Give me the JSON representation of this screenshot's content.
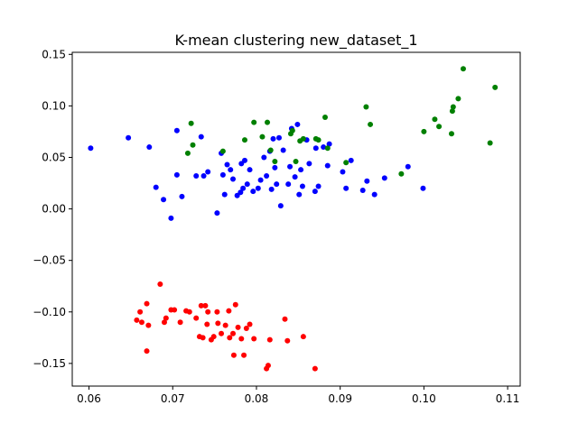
{
  "chart_data": {
    "type": "scatter",
    "title": "K-mean clustering new_dataset_1",
    "xlabel": "",
    "ylabel": "",
    "xlim": [
      0.058,
      0.1115
    ],
    "ylim": [
      -0.172,
      0.152
    ],
    "grid": false,
    "x_ticks": [
      0.06,
      0.07,
      0.08,
      0.09,
      0.1,
      0.11
    ],
    "x_tick_labels": [
      "0.06",
      "0.07",
      "0.08",
      "0.09",
      "0.10",
      "0.11"
    ],
    "y_ticks": [
      0.15,
      0.1,
      0.05,
      0.0,
      -0.05,
      -0.1,
      -0.15
    ],
    "y_tick_labels": [
      "0.15",
      "0.10",
      "0.05",
      "0.00",
      "−0.05",
      "−0.10",
      "−0.15"
    ],
    "series": [
      {
        "color": "#0000ff",
        "points": [
          [
            0.0602,
            0.059
          ],
          [
            0.0647,
            0.069
          ],
          [
            0.0672,
            0.06
          ],
          [
            0.068,
            0.021
          ],
          [
            0.0689,
            0.009
          ],
          [
            0.0698,
            -0.009
          ],
          [
            0.0705,
            0.033
          ],
          [
            0.0705,
            0.076
          ],
          [
            0.0711,
            0.012
          ],
          [
            0.0728,
            0.032
          ],
          [
            0.0734,
            0.07
          ],
          [
            0.0737,
            0.032
          ],
          [
            0.0742,
            0.036
          ],
          [
            0.0753,
            -0.004
          ],
          [
            0.0758,
            0.054
          ],
          [
            0.076,
            0.033
          ],
          [
            0.0762,
            0.014
          ],
          [
            0.0765,
            0.043
          ],
          [
            0.0769,
            0.038
          ],
          [
            0.0772,
            0.029
          ],
          [
            0.0777,
            0.013
          ],
          [
            0.0781,
            0.016
          ],
          [
            0.0782,
            0.044
          ],
          [
            0.0784,
            0.02
          ],
          [
            0.0786,
            0.047
          ],
          [
            0.0789,
            0.024
          ],
          [
            0.0792,
            0.038
          ],
          [
            0.0796,
            0.017
          ],
          [
            0.0802,
            0.02
          ],
          [
            0.0805,
            0.028
          ],
          [
            0.0809,
            0.05
          ],
          [
            0.0812,
            0.032
          ],
          [
            0.0816,
            0.056
          ],
          [
            0.0818,
            0.019
          ],
          [
            0.082,
            0.068
          ],
          [
            0.0822,
            0.04
          ],
          [
            0.0824,
            0.024
          ],
          [
            0.0827,
            0.069
          ],
          [
            0.0829,
            0.003
          ],
          [
            0.0832,
            0.057
          ],
          [
            0.0838,
            0.024
          ],
          [
            0.084,
            0.041
          ],
          [
            0.0842,
            0.078
          ],
          [
            0.0846,
            0.031
          ],
          [
            0.0849,
            0.082
          ],
          [
            0.0851,
            0.014
          ],
          [
            0.0853,
            0.038
          ],
          [
            0.0855,
            0.022
          ],
          [
            0.086,
            0.067
          ],
          [
            0.0863,
            0.044
          ],
          [
            0.087,
            0.017
          ],
          [
            0.0871,
            0.059
          ],
          [
            0.0874,
            0.022
          ],
          [
            0.088,
            0.06
          ],
          [
            0.0885,
            0.042
          ],
          [
            0.0887,
            0.063
          ],
          [
            0.0903,
            0.036
          ],
          [
            0.0907,
            0.02
          ],
          [
            0.0913,
            0.047
          ],
          [
            0.0927,
            0.018
          ],
          [
            0.0932,
            0.027
          ],
          [
            0.0941,
            0.014
          ],
          [
            0.0953,
            0.03
          ],
          [
            0.0981,
            0.041
          ],
          [
            0.0999,
            0.02
          ]
        ]
      },
      {
        "color": "#008000",
        "points": [
          [
            0.0718,
            0.054
          ],
          [
            0.0722,
            0.083
          ],
          [
            0.0724,
            0.062
          ],
          [
            0.076,
            0.056
          ],
          [
            0.0786,
            0.067
          ],
          [
            0.0797,
            0.084
          ],
          [
            0.0807,
            0.07
          ],
          [
            0.0813,
            0.084
          ],
          [
            0.0817,
            0.057
          ],
          [
            0.0822,
            0.046
          ],
          [
            0.0841,
            0.073
          ],
          [
            0.0843,
            0.076
          ],
          [
            0.0847,
            0.046
          ],
          [
            0.0852,
            0.066
          ],
          [
            0.0856,
            0.068
          ],
          [
            0.0871,
            0.068
          ],
          [
            0.0874,
            0.067
          ],
          [
            0.0882,
            0.089
          ],
          [
            0.0885,
            0.059
          ],
          [
            0.0907,
            0.045
          ],
          [
            0.0931,
            0.099
          ],
          [
            0.0936,
            0.082
          ],
          [
            0.0973,
            0.034
          ],
          [
            0.1,
            0.075
          ],
          [
            0.1013,
            0.087
          ],
          [
            0.1018,
            0.08
          ],
          [
            0.1033,
            0.073
          ],
          [
            0.1034,
            0.095
          ],
          [
            0.1035,
            0.099
          ],
          [
            0.1041,
            0.107
          ],
          [
            0.1047,
            0.136
          ],
          [
            0.1079,
            0.064
          ],
          [
            0.1085,
            0.118
          ]
        ]
      },
      {
        "color": "#ff0000",
        "points": [
          [
            0.0657,
            -0.108
          ],
          [
            0.0661,
            -0.1
          ],
          [
            0.0663,
            -0.11
          ],
          [
            0.0669,
            -0.092
          ],
          [
            0.0669,
            -0.138
          ],
          [
            0.0671,
            -0.113
          ],
          [
            0.0685,
            -0.073
          ],
          [
            0.069,
            -0.11
          ],
          [
            0.0692,
            -0.106
          ],
          [
            0.0698,
            -0.098
          ],
          [
            0.0702,
            -0.098
          ],
          [
            0.0709,
            -0.11
          ],
          [
            0.0716,
            -0.099
          ],
          [
            0.072,
            -0.1
          ],
          [
            0.0728,
            -0.106
          ],
          [
            0.0732,
            -0.124
          ],
          [
            0.0734,
            -0.094
          ],
          [
            0.0736,
            -0.125
          ],
          [
            0.0739,
            -0.094
          ],
          [
            0.0741,
            -0.112
          ],
          [
            0.0742,
            -0.1
          ],
          [
            0.0746,
            -0.127
          ],
          [
            0.0749,
            -0.124
          ],
          [
            0.0753,
            -0.1
          ],
          [
            0.0754,
            -0.111
          ],
          [
            0.0758,
            -0.121
          ],
          [
            0.0763,
            -0.113
          ],
          [
            0.0767,
            -0.099
          ],
          [
            0.0768,
            -0.125
          ],
          [
            0.0772,
            -0.121
          ],
          [
            0.0773,
            -0.142
          ],
          [
            0.0775,
            -0.093
          ],
          [
            0.0778,
            -0.115
          ],
          [
            0.0782,
            -0.126
          ],
          [
            0.0785,
            -0.142
          ],
          [
            0.0788,
            -0.116
          ],
          [
            0.0792,
            -0.112
          ],
          [
            0.0797,
            -0.126
          ],
          [
            0.0812,
            -0.155
          ],
          [
            0.0814,
            -0.152
          ],
          [
            0.0816,
            -0.127
          ],
          [
            0.0834,
            -0.107
          ],
          [
            0.0837,
            -0.128
          ],
          [
            0.0856,
            -0.124
          ],
          [
            0.087,
            -0.155
          ]
        ]
      }
    ]
  }
}
